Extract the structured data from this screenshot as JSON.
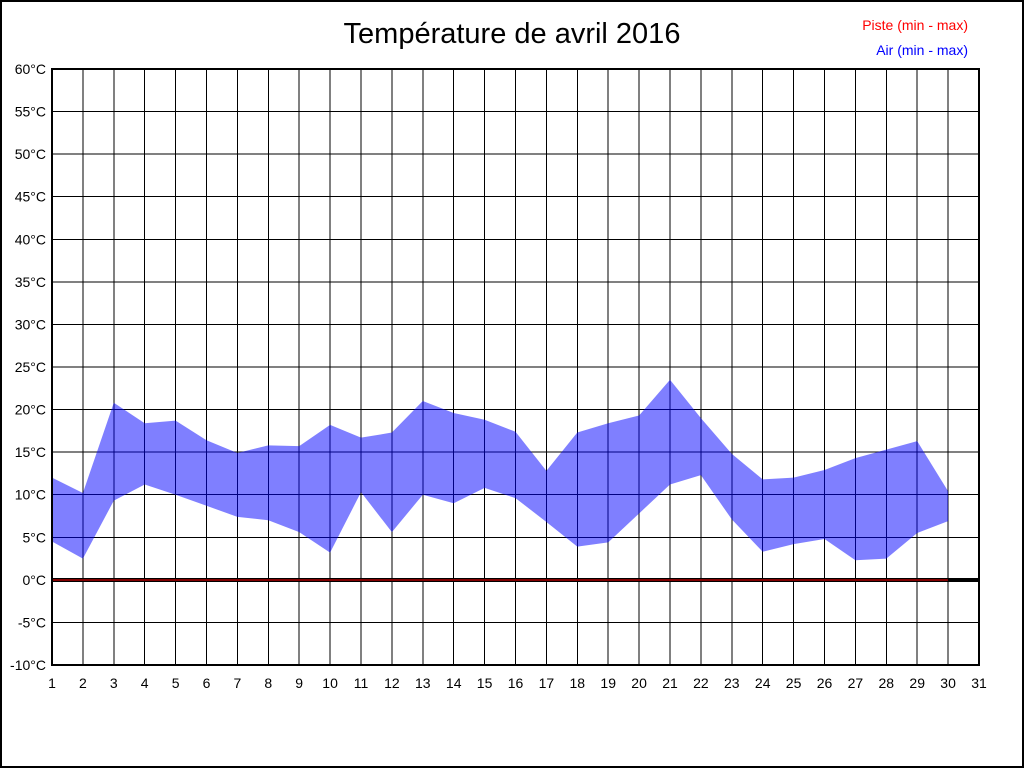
{
  "title": "Température de avril 2016",
  "legend": {
    "items": [
      {
        "label": "Piste (min - max)",
        "color": "#ff0000"
      },
      {
        "label": "Air (min - max)",
        "color": "#0000ff"
      }
    ]
  },
  "chart_data": {
    "type": "area",
    "subtype": "min-max range bands",
    "title": "Température de avril 2016",
    "xlabel": "",
    "ylabel": "",
    "x": [
      1,
      2,
      3,
      4,
      5,
      6,
      7,
      8,
      9,
      10,
      11,
      12,
      13,
      14,
      15,
      16,
      17,
      18,
      19,
      20,
      21,
      22,
      23,
      24,
      25,
      26,
      27,
      28,
      29,
      30
    ],
    "series": [
      {
        "name": "Piste (min - max)",
        "color": "#ff0000",
        "opacity": 0.5,
        "min": [
          0,
          0,
          0,
          0,
          0,
          0,
          0,
          0,
          0,
          0,
          0,
          0,
          0,
          0,
          0,
          0,
          0,
          0,
          0,
          0,
          0,
          0,
          0,
          0,
          0,
          0,
          0,
          0,
          0,
          0
        ],
        "max": [
          0,
          0,
          0,
          0,
          0,
          0,
          0,
          0,
          0,
          0,
          0,
          0,
          0,
          0,
          0,
          0,
          0,
          0,
          0,
          0,
          0,
          0,
          0,
          0,
          0,
          0,
          0,
          0,
          0,
          0
        ]
      },
      {
        "name": "Air (min - max)",
        "color": "#0000ff",
        "opacity": 0.5,
        "min": [
          4.5,
          2.5,
          9.3,
          11.2,
          10.0,
          8.7,
          7.4,
          7.0,
          5.6,
          3.2,
          10.3,
          5.6,
          10.0,
          9.0,
          10.8,
          9.6,
          6.8,
          3.9,
          4.4,
          7.8,
          11.2,
          12.3,
          7.1,
          3.3,
          4.2,
          4.8,
          2.3,
          2.5,
          5.5,
          6.9
        ],
        "max": [
          12.0,
          10.2,
          20.8,
          18.4,
          18.7,
          16.4,
          14.9,
          15.8,
          15.7,
          18.2,
          16.7,
          17.3,
          21.0,
          19.6,
          18.8,
          17.4,
          12.8,
          17.3,
          18.4,
          19.3,
          23.5,
          19.0,
          14.8,
          11.8,
          12.0,
          12.9,
          14.3,
          15.3,
          16.3,
          10.4
        ]
      }
    ],
    "xlim": [
      1,
      31
    ],
    "ylim": [
      -10,
      60
    ],
    "x_ticks": [
      "1",
      "2",
      "3",
      "4",
      "5",
      "6",
      "7",
      "8",
      "9",
      "10",
      "11",
      "12",
      "13",
      "14",
      "15",
      "16",
      "17",
      "18",
      "19",
      "20",
      "21",
      "22",
      "23",
      "24",
      "25",
      "26",
      "27",
      "28",
      "29",
      "30",
      "31"
    ],
    "y_tick_values": [
      60,
      55,
      50,
      45,
      40,
      35,
      30,
      25,
      20,
      15,
      10,
      5,
      0,
      -5,
      -10
    ],
    "y_tick_labels": [
      "60°C",
      "55°C",
      "50°C",
      "45°C",
      "40°C",
      "35°C",
      "30°C",
      "25°C",
      "20°C",
      "15°C",
      "10°C",
      "5°C",
      "0°C",
      "-5°C",
      "-10°C"
    ],
    "grid": true,
    "legend_position": "top-right",
    "zero_line": {
      "color": "#000000",
      "width": 4
    },
    "grid_color": "#000000",
    "background": "#ffffff"
  }
}
